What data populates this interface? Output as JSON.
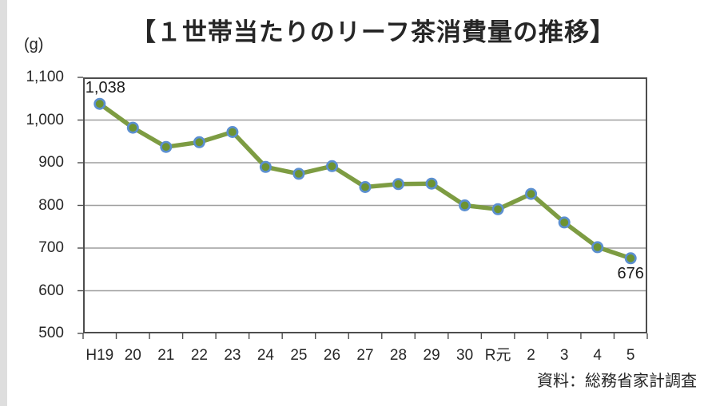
{
  "page": {
    "title": "【１世帯当たりのリーフ茶消費量の推移】",
    "unit_label": "(g)",
    "source": "資料：総務省家計調査"
  },
  "chart_data": {
    "type": "line",
    "title": "【１世帯当たりのリーフ茶消費量の推移】",
    "ylabel": "(g)",
    "categories": [
      "H19",
      "20",
      "21",
      "22",
      "23",
      "24",
      "25",
      "26",
      "27",
      "28",
      "29",
      "30",
      "R元",
      "2",
      "3",
      "4",
      "5"
    ],
    "values": [
      1038,
      982,
      937,
      948,
      972,
      890,
      874,
      892,
      843,
      850,
      851,
      800,
      791,
      827,
      760,
      702,
      676
    ],
    "ylim": [
      500,
      1100
    ],
    "ytick_step": 100,
    "ytick_labels": [
      "500",
      "600",
      "700",
      "800",
      "900",
      "1,000",
      "1,100"
    ],
    "grid": true,
    "legend": false,
    "point_labels": {
      "first": "1,038",
      "last": "676"
    },
    "source": "資料：総務省家計調査",
    "colors": {
      "line": "#7D9C42",
      "marker_fill": "#6D9331",
      "marker_border": "#5B8FD0",
      "gridline": "#9e9e9e",
      "border": "#4d4d4d",
      "text": "#262626"
    }
  }
}
